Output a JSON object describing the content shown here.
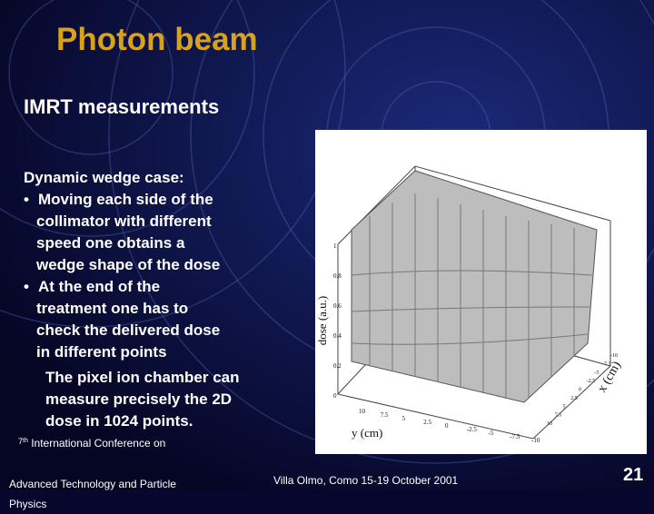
{
  "header": {
    "title": "Photon beam",
    "subtitle": "IMRT measurements"
  },
  "body": {
    "intro": "Dynamic wedge case:",
    "bullets": [
      [
        "Moving each side of the",
        "collimator with different",
        "speed one obtains a",
        "wedge shape of the dose"
      ],
      [
        "At the end of the",
        "treatment one has to",
        "check the delivered dose",
        "in different points"
      ]
    ],
    "note": [
      "The pixel ion chamber can",
      "measure precisely the 2D",
      "dose in 1024 points."
    ]
  },
  "figure": {
    "z_label": "dose (a.u.)",
    "y_label": "y (cm)",
    "x_label": "x (cm)",
    "z_ticks": [
      "1",
      "0.8",
      "0.6",
      "0.4",
      "0.2",
      "0"
    ],
    "y_ticks": [
      "10",
      "7.5",
      "5",
      "2.5",
      "0",
      "-2.5",
      "-5",
      "-7.5",
      "-10"
    ],
    "x_ticks": [
      "10",
      "7.5",
      "5",
      "2.5",
      "0",
      "-2.5",
      "-5",
      "-7.5",
      "-10"
    ]
  },
  "footer": {
    "conf_number": "7",
    "conf_suffix": "th",
    "conf_line1": " International Conference on",
    "conf_line2": "Advanced Technology and Particle Physics",
    "venue": "Villa Olmo, Como 15-19 October 2001",
    "page": "21"
  }
}
